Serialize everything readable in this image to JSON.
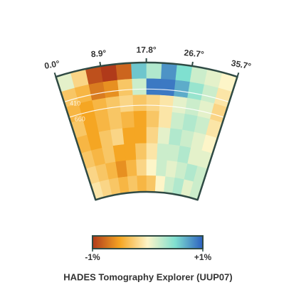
{
  "chart_data": {
    "type": "wedge-heatmap",
    "title": "HADES Tomography Explorer (UUP07)",
    "xlim": [
      0,
      35.7
    ],
    "xticks": [
      {
        "value": 0,
        "label": "0.0°"
      },
      {
        "value": 8.9,
        "label": "8.9°"
      },
      {
        "value": 17.8,
        "label": "17.8°"
      },
      {
        "value": 26.7,
        "label": "26.7°"
      },
      {
        "value": 35.7,
        "label": "35.7°"
      }
    ],
    "ylim": [
      0,
      2000
    ],
    "depth_lines": [
      {
        "value": 410,
        "label": "410"
      },
      {
        "value": 660,
        "label": "660"
      }
    ],
    "z": [
      [
        0.1,
        -0.2,
        -0.9,
        -1,
        -0.8,
        0.6,
        0.3,
        0.8,
        0.5,
        0.2,
        0.1,
        0
      ],
      [
        -0.3,
        -0.4,
        -0.7,
        -0.6,
        -0.3,
        0.2,
        0.9,
        0.9,
        0.7,
        0.4,
        0.2,
        -0.1
      ],
      [
        -0.4,
        -0.5,
        -0.4,
        -0.3,
        -0.2,
        -0.3,
        -0.2,
        -0.1,
        0.1,
        0.2,
        0.1,
        -0.2
      ],
      [
        -0.3,
        -0.5,
        -0.4,
        -0.3,
        -0.4,
        -0.5,
        -0.3,
        -0.1,
        0.2,
        0.3,
        0.2,
        -0.1
      ],
      [
        -0.4,
        -0.5,
        -0.3,
        -0.2,
        -0.5,
        -0.5,
        -0.2,
        0.1,
        0.3,
        0.2,
        0.1,
        0
      ],
      [
        -0.3,
        -0.4,
        -0.3,
        -0.5,
        -0.5,
        -0.3,
        -0.1,
        0.2,
        0.2,
        0.3,
        0.1,
        0.1
      ],
      [
        -0.2,
        -0.3,
        -0.4,
        -0.6,
        -0.4,
        -0.2,
        0,
        0.2,
        0.1,
        0.2,
        0.3,
        0.2
      ],
      [
        -0.1,
        -0.2,
        -0.3,
        -0.4,
        -0.3,
        -0.4,
        -0.3,
        0,
        0.2,
        0.3,
        0.1,
        0.2
      ]
    ],
    "zlim": [
      {
        "value": -1,
        "label": "-1%"
      },
      {
        "value": 1,
        "label": "+1%"
      }
    ],
    "colorscale": [
      "#b03a1a",
      "#f5a623",
      "#fdf5c8",
      "#7fe0d0",
      "#2b5fc0"
    ],
    "outline_color": "#2f4a44"
  }
}
